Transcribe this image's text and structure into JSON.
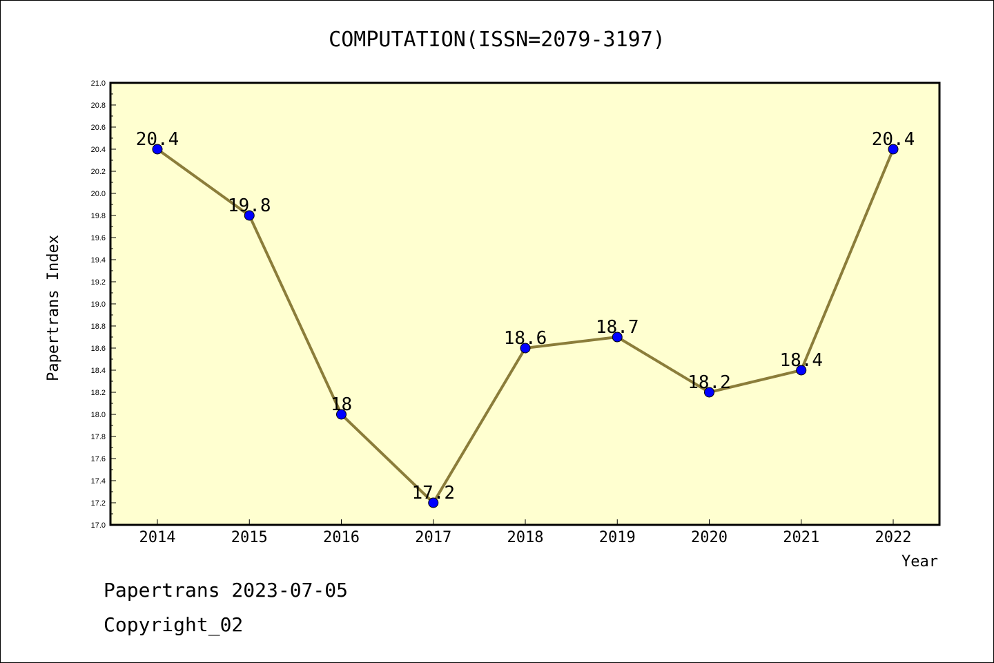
{
  "footer": {
    "line1": "Papertrans 2023-07-05",
    "line2": "Copyright_02"
  },
  "colors": {
    "plot_background": "#ffffd0",
    "line": "#8b7d3a",
    "marker": "#0000ff",
    "axis": "#000000"
  },
  "chart_data": {
    "type": "line",
    "title": "COMPUTATION(ISSN=2079-3197)",
    "xlabel": "Year",
    "ylabel": "Papertrans Index",
    "categories": [
      "2014",
      "2015",
      "2016",
      "2017",
      "2018",
      "2019",
      "2020",
      "2021",
      "2022"
    ],
    "series": [
      {
        "values": [
          20.4,
          19.8,
          18.0,
          17.2,
          18.6,
          18.7,
          18.2,
          18.4,
          20.4
        ],
        "labels": [
          "20.4",
          "19.8",
          "18",
          "17.2",
          "18.6",
          "18.7",
          "18.2",
          "18.4",
          "20.4"
        ]
      }
    ],
    "ylim": [
      17.0,
      21.0
    ],
    "yticks": [
      "17.0",
      "17.2",
      "17.4",
      "17.6",
      "17.8",
      "18.0",
      "18.2",
      "18.4",
      "18.6",
      "18.8",
      "19.0",
      "19.2",
      "19.4",
      "19.6",
      "19.8",
      "20.0",
      "20.2",
      "20.4",
      "20.6",
      "20.8",
      "21.0"
    ],
    "grid": false,
    "legend": "none"
  }
}
